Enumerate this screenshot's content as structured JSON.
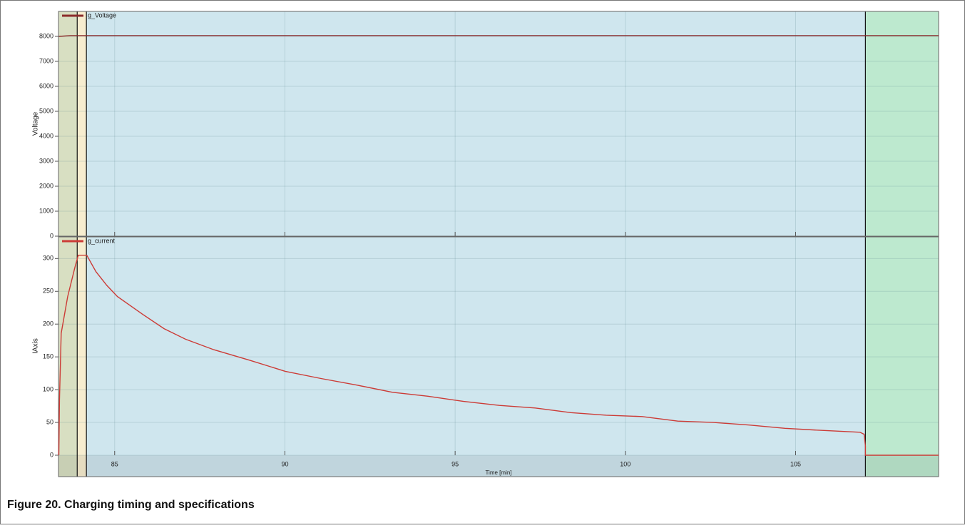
{
  "caption": "Figure 20.  Charging timing and specifications",
  "chart_data": [
    {
      "type": "line",
      "ylabel": "Voltage",
      "xlim": [
        83.35,
        109.2
      ],
      "xticks": [
        85,
        90,
        95,
        100,
        105
      ],
      "show_xtick_labels": false,
      "ylim": [
        0,
        9000
      ],
      "yticks": [
        0,
        1000,
        2000,
        3000,
        4000,
        5000,
        6000,
        7000,
        8000
      ],
      "grid": true,
      "regions": [
        {
          "x0": 83.35,
          "x1": 83.9,
          "color": "#d8dfc2"
        },
        {
          "x0": 83.9,
          "x1": 84.17,
          "color": "#f7edcf"
        },
        {
          "x0": 84.17,
          "x1": 107.05,
          "color": "#cfe6ee"
        },
        {
          "x0": 107.05,
          "x1": 109.2,
          "color": "#bde9cf"
        }
      ],
      "series": [
        {
          "name": "g_Voltage",
          "color": "#8b2b2b",
          "x": [
            83.36,
            83.7,
            109.2
          ],
          "values": [
            8000,
            8030,
            8030
          ]
        }
      ]
    },
    {
      "type": "line",
      "ylabel": "IAxis",
      "xlabel": "Time [min]",
      "xlim": [
        83.35,
        109.2
      ],
      "xticks": [
        85,
        90,
        95,
        100,
        105
      ],
      "show_xtick_labels": true,
      "ylim": [
        0,
        333
      ],
      "yticks": [
        0,
        50,
        100,
        150,
        200,
        250,
        300
      ],
      "grid": true,
      "regions": [
        {
          "x0": 83.35,
          "x1": 83.9,
          "color": "#d8dfc2"
        },
        {
          "x0": 83.9,
          "x1": 84.17,
          "color": "#f7edcf"
        },
        {
          "x0": 84.17,
          "x1": 107.05,
          "color": "#cfe6ee"
        },
        {
          "x0": 107.05,
          "x1": 109.2,
          "color": "#bde9cf"
        }
      ],
      "series": [
        {
          "name": "g_current",
          "color": "#cc3b36",
          "x": [
            83.36,
            83.38,
            83.43,
            83.62,
            83.83,
            83.93,
            84.18,
            84.45,
            84.77,
            85.08,
            85.82,
            86.45,
            87.08,
            87.91,
            88.96,
            90.01,
            91.06,
            92.11,
            93.16,
            94.2,
            95.25,
            96.3,
            97.35,
            98.4,
            99.44,
            100.49,
            101.54,
            102.59,
            103.64,
            104.69,
            105.73,
            106.89,
            107.01,
            107.05,
            107.05,
            109.2
          ],
          "values": [
            0,
            85,
            186,
            242,
            286,
            305,
            305,
            280,
            259,
            242,
            215,
            193,
            177,
            161,
            145,
            128,
            117,
            107,
            96,
            90,
            82,
            76,
            72,
            65,
            61,
            59,
            52,
            50,
            46,
            41,
            38,
            35,
            32,
            14,
            0,
            0
          ]
        }
      ]
    }
  ]
}
